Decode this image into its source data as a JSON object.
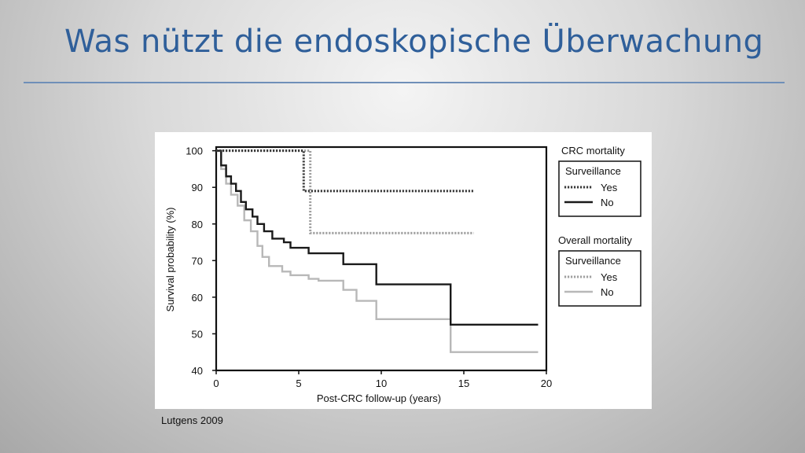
{
  "slide": {
    "title": "Was nützt die endoskopische Überwachung",
    "caption": "Lutgens 2009"
  },
  "chart_data": {
    "type": "line",
    "xlabel": "Post-CRC follow-up (years)",
    "ylabel": "Survival probability (%)",
    "xlim": [
      0,
      20
    ],
    "ylim": [
      40,
      101
    ],
    "xticks": [
      0,
      5,
      10,
      15,
      20
    ],
    "yticks": [
      40,
      50,
      60,
      70,
      80,
      90,
      100
    ],
    "grid": false,
    "legend": {
      "placement": "right",
      "groups": [
        {
          "title": "CRC mortality",
          "box_title": "Surveillance",
          "entries": [
            "Yes",
            "No"
          ]
        },
        {
          "title": "Overall mortality",
          "box_title": "Surveillance",
          "entries": [
            "Yes",
            "No"
          ]
        }
      ]
    },
    "series": [
      {
        "group": "CRC mortality",
        "name": "Yes",
        "style": "dotted-dark",
        "color": "#333333",
        "points": [
          [
            0,
            100
          ],
          [
            5.3,
            100
          ],
          [
            5.3,
            89
          ],
          [
            15.6,
            89
          ]
        ]
      },
      {
        "group": "CRC mortality",
        "name": "No",
        "style": "solid-dark",
        "color": "#1a1a1a",
        "points": [
          [
            0,
            100
          ],
          [
            0.3,
            96
          ],
          [
            0.6,
            93
          ],
          [
            0.9,
            91
          ],
          [
            1.2,
            89
          ],
          [
            1.5,
            86
          ],
          [
            1.8,
            84
          ],
          [
            2.2,
            82
          ],
          [
            2.5,
            80
          ],
          [
            2.9,
            78
          ],
          [
            3.4,
            76
          ],
          [
            4.1,
            75
          ],
          [
            4.5,
            73.5
          ],
          [
            5.6,
            72
          ],
          [
            7.7,
            69
          ],
          [
            9.7,
            63.5
          ],
          [
            14.2,
            63.5
          ],
          [
            14.2,
            52.5
          ],
          [
            19.5,
            52.5
          ]
        ]
      },
      {
        "group": "Overall mortality",
        "name": "Yes",
        "style": "dotted-light",
        "color": "#9a9a9a",
        "points": [
          [
            0,
            100
          ],
          [
            5.7,
            100
          ],
          [
            5.7,
            77.5
          ],
          [
            15.6,
            77.5
          ]
        ]
      },
      {
        "group": "Overall mortality",
        "name": "No",
        "style": "solid-light",
        "color": "#b5b5b5",
        "points": [
          [
            0,
            100
          ],
          [
            0.3,
            95
          ],
          [
            0.6,
            91
          ],
          [
            0.9,
            88
          ],
          [
            1.3,
            85
          ],
          [
            1.7,
            81
          ],
          [
            2.1,
            78
          ],
          [
            2.5,
            74
          ],
          [
            2.8,
            71
          ],
          [
            3.2,
            68.5
          ],
          [
            4.0,
            67
          ],
          [
            4.5,
            66
          ],
          [
            5.6,
            65
          ],
          [
            6.2,
            64.5
          ],
          [
            7.7,
            62
          ],
          [
            8.5,
            59
          ],
          [
            9.7,
            54
          ],
          [
            14.2,
            54
          ],
          [
            14.2,
            45
          ],
          [
            19.5,
            45
          ]
        ]
      }
    ]
  }
}
